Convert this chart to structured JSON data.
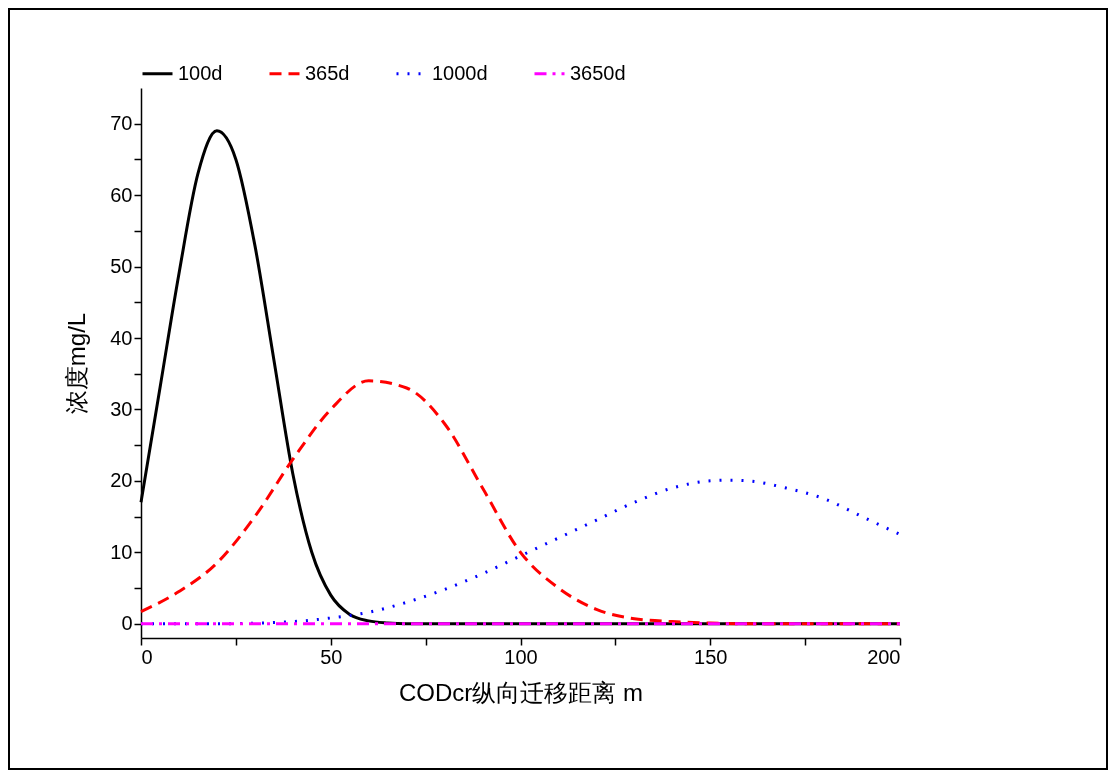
{
  "chart_data": {
    "type": "line",
    "xlabel": "CODcr纵向迁移距离 m",
    "ylabel": "浓度mg/L",
    "xlim": [
      0,
      200
    ],
    "ylim": [
      -2,
      75
    ],
    "xticks": [
      0,
      {
        "value": 25,
        "label": null
      },
      50,
      {
        "value": 75,
        "label": null
      },
      100,
      {
        "value": 125,
        "label": null
      },
      150,
      {
        "value": 175,
        "label": null
      },
      200
    ],
    "yticks": [
      0,
      {
        "value": 5,
        "label": null
      },
      10,
      {
        "value": 15,
        "label": null
      },
      20,
      {
        "value": 25,
        "label": null
      },
      30,
      {
        "value": 35,
        "label": null
      },
      40,
      {
        "value": 45,
        "label": null
      },
      50,
      {
        "value": 55,
        "label": null
      },
      60,
      {
        "value": 65,
        "label": null
      },
      70
    ],
    "grid": false,
    "legend": "top",
    "marker": "none",
    "series": [
      {
        "name": "100d",
        "color": "#000000",
        "line_style": "solid",
        "x": [
          0,
          5,
          10,
          15,
          20,
          25,
          30,
          35,
          40,
          45,
          50,
          55,
          60,
          65,
          70,
          100,
          150,
          200
        ],
        "values": [
          17,
          33,
          49,
          63,
          69,
          65,
          53,
          37,
          21,
          10,
          4,
          1.3,
          0.4,
          0.1,
          0,
          0,
          0,
          0
        ]
      },
      {
        "name": "365d",
        "color": "#ff0000",
        "line_style": "dashed",
        "x": [
          0,
          10,
          20,
          30,
          40,
          50,
          60,
          70,
          80,
          90,
          100,
          110,
          120,
          130,
          140,
          150,
          160,
          200
        ],
        "values": [
          1.7,
          4.5,
          8.5,
          15,
          23,
          30,
          34,
          33,
          28,
          19,
          10,
          5,
          2,
          0.7,
          0.3,
          0.1,
          0,
          0
        ]
      },
      {
        "name": "1000d",
        "color": "#0000ff",
        "line_style": "dotted",
        "x": [
          0,
          20,
          40,
          50,
          60,
          70,
          80,
          90,
          100,
          110,
          120,
          130,
          140,
          150,
          155,
          160,
          170,
          180,
          190,
          200
        ],
        "values": [
          0,
          0,
          0.3,
          0.8,
          1.6,
          3,
          4.8,
          7,
          9.5,
          12,
          14.5,
          17,
          19,
          20,
          20.1,
          20,
          19,
          17.5,
          15,
          12.5
        ]
      },
      {
        "name": "3650d",
        "color": "#ff00ff",
        "line_style": "dashdot",
        "x": [
          0,
          50,
          100,
          150,
          200
        ],
        "values": [
          0,
          0,
          0,
          0,
          0
        ]
      }
    ]
  }
}
